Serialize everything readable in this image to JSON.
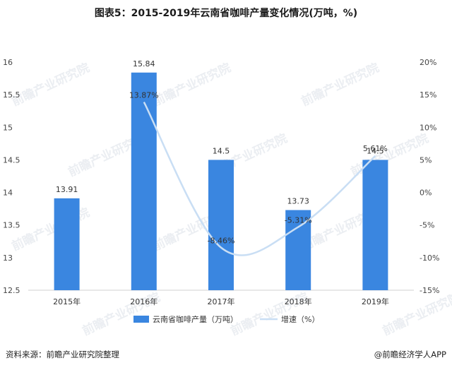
{
  "title": "图表5：2015-2019年云南省咖啡产量变化情况(万吨，%)",
  "source": "资料来源：前瞻产业研究院整理",
  "brand": "@前瞻经济学人APP",
  "watermark": "前瞻产业研究院",
  "chart_data": {
    "type": "bar",
    "categories": [
      "2015年",
      "2016年",
      "2017年",
      "2018年",
      "2019年"
    ],
    "series": [
      {
        "name": "云南省咖啡产量（万吨）",
        "type": "bar",
        "axis": "left",
        "color": "#3a86e0",
        "values": [
          13.91,
          15.84,
          14.5,
          13.73,
          14.5
        ],
        "labels": [
          "13.91",
          "15.84",
          "14.5",
          "13.73",
          "14.5"
        ]
      },
      {
        "name": "增速（%）",
        "type": "line",
        "axis": "right",
        "color": "#c9def4",
        "values": [
          null,
          13.87,
          -8.46,
          -5.31,
          5.61
        ],
        "labels": [
          "",
          "13.87%",
          "-8.46%",
          "-5.31%",
          "5.61%"
        ]
      }
    ],
    "y_left": {
      "min": 12.5,
      "max": 16,
      "ticks": [
        "12.5",
        "13",
        "13.5",
        "14",
        "14.5",
        "15",
        "15.5",
        "16"
      ]
    },
    "y_right": {
      "min": -15,
      "max": 20,
      "ticks": [
        "-15%",
        "-10%",
        "-5%",
        "0%",
        "5%",
        "10%",
        "15%",
        "20%"
      ]
    },
    "legend_position": "bottom",
    "grid": false
  }
}
